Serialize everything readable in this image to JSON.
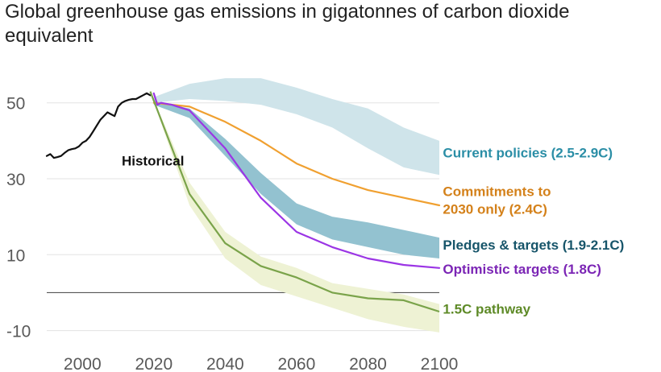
{
  "chart_data": {
    "type": "line",
    "title": "Global greenhouse gas emissions in gigatonnes of carbon dioxide equivalent",
    "xlim": [
      1990,
      2100
    ],
    "ylim": [
      -12,
      58
    ],
    "x_ticks": [
      2000,
      2020,
      2040,
      2060,
      2080,
      2100
    ],
    "y_ticks": [
      50,
      30,
      10,
      -10
    ],
    "zero_line": 0,
    "grid": true,
    "series": [
      {
        "name": "Historical",
        "kind": "line",
        "color": "#111111",
        "x": [
          1990,
          1991,
          1992,
          1993,
          1994,
          1995,
          1996,
          1997,
          1998,
          1999,
          2000,
          2001,
          2002,
          2003,
          2004,
          2005,
          2006,
          2007,
          2008,
          2009,
          2010,
          2011,
          2012,
          2013,
          2014,
          2015,
          2016,
          2017,
          2018,
          2019
        ],
        "y": [
          36,
          36.5,
          35.5,
          35.7,
          36,
          36.8,
          37.5,
          37.8,
          38,
          38.5,
          39.5,
          40,
          41,
          42.5,
          44,
          45.5,
          46.5,
          47.5,
          47,
          46.5,
          49,
          50,
          50.5,
          50.8,
          51,
          51,
          51.5,
          52,
          52.5,
          52
        ]
      },
      {
        "name": "Current policies (2.5-2.9C)",
        "kind": "band",
        "color": "#cfe4ea",
        "label_color": "#2b8ea6",
        "x": [
          2020,
          2030,
          2040,
          2050,
          2060,
          2070,
          2080,
          2090,
          2100
        ],
        "low": [
          50,
          51,
          50.5,
          49.5,
          47,
          43.5,
          38,
          33,
          31
        ],
        "high": [
          51.5,
          55,
          56.5,
          56.5,
          54,
          51,
          48.5,
          43.5,
          40
        ]
      },
      {
        "name": "Commitments to 2030 only (2.4C)",
        "kind": "line",
        "color": "#f0a030",
        "label_color": "#d4811a",
        "x": [
          2020,
          2030,
          2040,
          2050,
          2055,
          2060,
          2070,
          2080,
          2090,
          2100
        ],
        "y": [
          50,
          49,
          45,
          40,
          37,
          34,
          30,
          27,
          25,
          23
        ]
      },
      {
        "name": "Pledges & targets (1.9-2.1C)",
        "kind": "band",
        "color": "#93c2d0",
        "label_color": "#17556a",
        "x": [
          2020,
          2030,
          2040,
          2050,
          2060,
          2070,
          2080,
          2090,
          2100
        ],
        "low": [
          49.5,
          46,
          36,
          26,
          18,
          14,
          12,
          10,
          9
        ],
        "high": [
          50.5,
          48.5,
          40.5,
          31.5,
          23.5,
          20,
          18.5,
          16.5,
          14.5
        ]
      },
      {
        "name": "Optimistic targets (1.8C)",
        "kind": "line",
        "color": "#9b35e5",
        "label_color": "#7b25b5",
        "x": [
          2020,
          2021,
          2022,
          2025,
          2030,
          2040,
          2050,
          2060,
          2070,
          2080,
          2090,
          2100
        ],
        "y": [
          52.5,
          49.5,
          50,
          49.5,
          48,
          38,
          25,
          16,
          12,
          9,
          7.3,
          6.5
        ]
      },
      {
        "name": "1.5C pathway",
        "kind": "line_band",
        "color": "#7aa34a",
        "band_color": "#eef2d4",
        "label_color": "#5e8a27",
        "x": [
          2019,
          2030,
          2040,
          2050,
          2060,
          2070,
          2080,
          2090,
          2100
        ],
        "y": [
          53,
          26,
          13,
          7,
          4,
          0,
          -1.5,
          -2,
          -5
        ],
        "low": [
          53,
          23,
          9,
          2,
          -1,
          -4,
          -7,
          -9,
          -10.5
        ],
        "high": [
          53,
          29,
          16,
          9.5,
          6.5,
          2.5,
          1,
          -0.5,
          -3
        ]
      }
    ],
    "labels": [
      {
        "lines": [
          "Historical"
        ],
        "x": 2011,
        "y": 33.5,
        "color": "#111111",
        "anchor": "start"
      },
      {
        "lines": [
          "Current policies (2.5-2.9C)"
        ],
        "x": 2101,
        "y": 35.6,
        "color": "#2b8ea6",
        "anchor": "start"
      },
      {
        "lines": [
          "Commitments to",
          "2030 only (2.4C)"
        ],
        "x": 2101,
        "y": 25.4,
        "color": "#d4811a",
        "anchor": "start"
      },
      {
        "lines": [
          "Pledges & targets (1.9-2.1C)"
        ],
        "x": 2101,
        "y": 11.3,
        "color": "#17556a",
        "anchor": "start"
      },
      {
        "lines": [
          "Optimistic targets (1.8C)"
        ],
        "x": 2101,
        "y": 5.0,
        "color": "#7b25b5",
        "anchor": "start"
      },
      {
        "lines": [
          "1.5C pathway"
        ],
        "x": 2101,
        "y": -5.5,
        "color": "#5e8a27",
        "anchor": "start"
      }
    ]
  }
}
